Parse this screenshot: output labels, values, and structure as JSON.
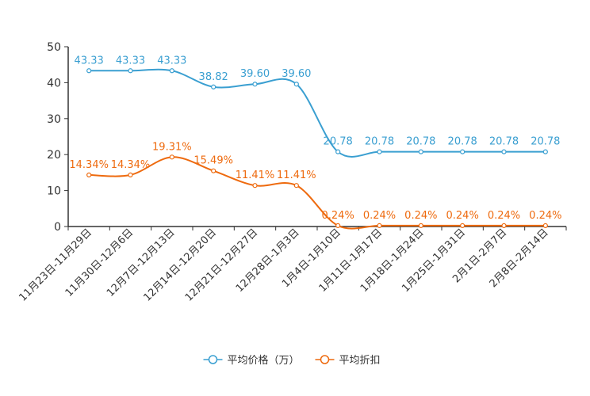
{
  "chart_data": {
    "type": "line",
    "title": "",
    "xlabel": "",
    "ylabel": "",
    "ylim": [
      0,
      50
    ],
    "yticks": [
      0,
      10,
      20,
      30,
      40,
      50
    ],
    "grid": false,
    "legend_position": "bottom-center",
    "categories": [
      "11月23日-11月29日",
      "11月30日-12月6日",
      "12月7日-12月13日",
      "12月14日-12月20日",
      "12月21日-12月27日",
      "12月28日-1月3日",
      "1月4日-1月10日",
      "1月11日-1月17日",
      "1月18日-1月24日",
      "1月25日-1月31日",
      "2月1日-2月7日",
      "2月8日-2月14日"
    ],
    "series": [
      {
        "name": "平均价格（万）",
        "color": "#3a9fd1",
        "values": [
          43.33,
          43.33,
          43.33,
          38.82,
          39.6,
          39.6,
          20.78,
          20.78,
          20.78,
          20.78,
          20.78,
          20.78
        ],
        "labels": [
          "43.33",
          "43.33",
          "43.33",
          "38.82",
          "39.60",
          "39.60",
          "20.78",
          "20.78",
          "20.78",
          "20.78",
          "20.78",
          "20.78"
        ]
      },
      {
        "name": "平均折扣",
        "color": "#ee6a0e",
        "values": [
          14.34,
          14.34,
          19.31,
          15.49,
          11.41,
          11.41,
          0.24,
          0.24,
          0.24,
          0.24,
          0.24,
          0.24
        ],
        "labels": [
          "14.34%",
          "14.34%",
          "19.31%",
          "15.49%",
          "11.41%",
          "11.41%",
          "0.24%",
          "0.24%",
          "0.24%",
          "0.24%",
          "0.24%",
          "0.24%"
        ]
      }
    ]
  }
}
